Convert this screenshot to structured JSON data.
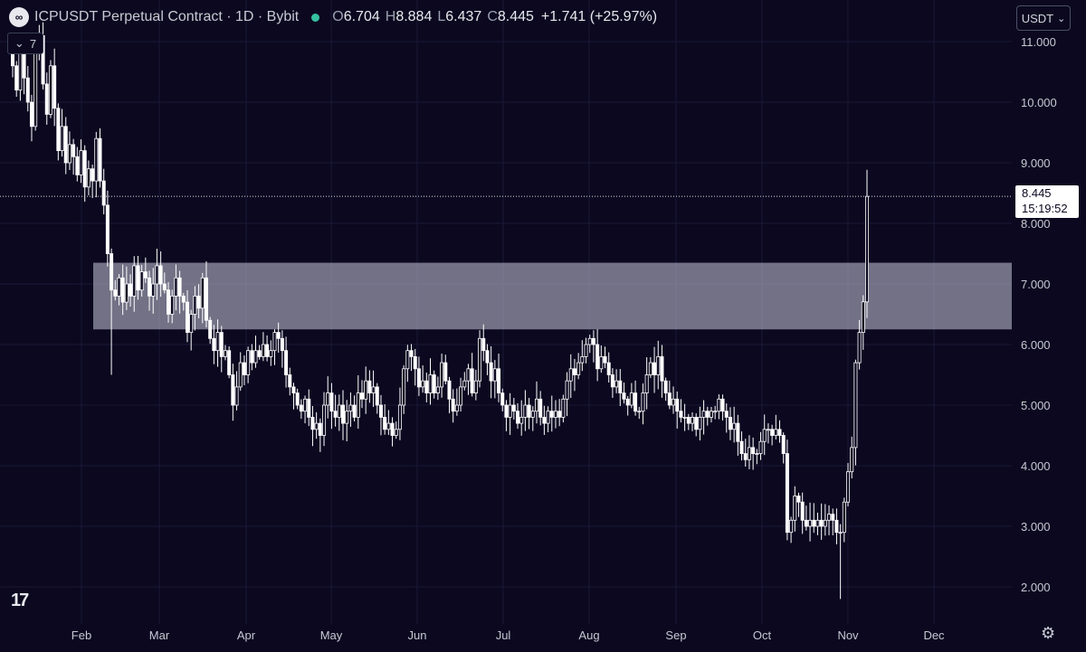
{
  "header": {
    "symbol": "ICPUSDT Perpetual Contract · 1D · Bybit",
    "open_label": "O",
    "open": "6.704",
    "high_label": "H",
    "high": "8.884",
    "low_label": "L",
    "low": "6.437",
    "close_label": "C",
    "close": "8.445",
    "change": "+1.741 (+25.97%)",
    "logo_icon": "icp-logo-icon",
    "status_icon": "market-status-dot-icon"
  },
  "indicator_toggle": {
    "count": "7",
    "icon": "chevron-down-icon"
  },
  "currency_selector": {
    "value": "USDT",
    "icon": "chevron-down-icon"
  },
  "price_tag": {
    "price": "8.445",
    "countdown": "15:19:52"
  },
  "colors": {
    "background": "#0b0820",
    "candle": "#ffffff",
    "zone": "#c8c8d8",
    "grid": "#1b1836"
  },
  "chart_data": {
    "type": "candlestick",
    "x_labels": [
      "Feb",
      "Mar",
      "Apr",
      "May",
      "Jun",
      "Jul",
      "Aug",
      "Sep",
      "Oct",
      "Nov",
      "Dec"
    ],
    "y_ticks": [
      "11.000",
      "10.000",
      "9.000",
      "8.000",
      "7.000",
      "6.000",
      "5.000",
      "4.000",
      "3.000",
      "2.000"
    ],
    "y_range": [
      1.6,
      11.4
    ],
    "current_price": 8.445,
    "zone": {
      "low": 6.25,
      "high": 7.35,
      "start": "2024-02-05",
      "end": "open"
    },
    "closes": [
      10.6,
      10.2,
      10.9,
      10.4,
      10.0,
      9.6,
      10.8,
      11.1,
      10.3,
      9.8,
      10.6,
      9.9,
      9.2,
      9.6,
      9.0,
      9.3,
      9.1,
      8.8,
      9.2,
      8.6,
      8.9,
      8.7,
      9.4,
      8.7,
      8.3,
      7.5,
      6.9,
      6.8,
      7.1,
      6.7,
      7.0,
      6.8,
      7.3,
      6.9,
      7.2,
      7.1,
      6.8,
      7.0,
      7.3,
      7.0,
      6.9,
      6.5,
      6.8,
      7.1,
      6.8,
      6.7,
      6.2,
      6.5,
      6.8,
      6.6,
      7.1,
      6.4,
      6.1,
      5.9,
      6.2,
      5.8,
      5.9,
      5.5,
      5.0,
      5.3,
      5.7,
      5.5,
      5.9,
      5.7,
      5.9,
      5.8,
      6.0,
      5.8,
      5.9,
      6.2,
      6.1,
      5.9,
      5.5,
      5.3,
      5.2,
      5.0,
      4.9,
      5.1,
      4.8,
      4.6,
      4.7,
      4.5,
      5.0,
      5.2,
      4.9,
      4.8,
      5.0,
      4.7,
      4.9,
      5.0,
      4.8,
      5.2,
      5.1,
      5.4,
      5.2,
      5.3,
      5.0,
      4.8,
      4.6,
      4.7,
      4.5,
      4.6,
      5.0,
      5.6,
      5.9,
      5.8,
      5.6,
      5.3,
      5.4,
      5.2,
      5.5,
      5.2,
      5.3,
      5.7,
      5.4,
      5.1,
      4.9,
      5.0,
      5.3,
      5.4,
      5.6,
      5.2,
      5.4,
      6.1,
      5.9,
      5.7,
      5.4,
      5.6,
      5.2,
      5.0,
      4.8,
      5.0,
      4.9,
      4.7,
      4.8,
      5.0,
      4.8,
      4.9,
      5.1,
      4.8,
      4.7,
      4.9,
      4.8,
      4.9,
      4.8,
      5.1,
      5.4,
      5.6,
      5.5,
      5.7,
      5.8,
      6.0,
      6.1,
      6.0,
      5.6,
      5.8,
      5.7,
      5.5,
      5.3,
      5.4,
      5.2,
      5.1,
      5.0,
      5.2,
      4.9,
      4.9,
      5.2,
      5.5,
      5.7,
      5.5,
      5.8,
      5.4,
      5.2,
      5.0,
      5.1,
      4.9,
      4.8,
      4.8,
      4.7,
      4.8,
      4.6,
      4.8,
      4.9,
      4.8,
      4.9,
      4.9,
      5.1,
      4.9,
      4.8,
      4.6,
      4.7,
      4.4,
      4.2,
      4.1,
      4.3,
      4.2,
      4.2,
      4.4,
      4.6,
      4.6,
      4.5,
      4.6,
      4.5,
      4.2,
      2.9,
      3.1,
      3.5,
      3.4,
      3.1,
      3.0,
      3.1,
      3.0,
      3.1,
      3.0,
      3.1,
      3.2,
      3.1,
      2.9,
      2.9,
      3.4,
      3.9,
      4.3,
      5.7,
      6.2,
      6.704,
      8.445
    ]
  }
}
